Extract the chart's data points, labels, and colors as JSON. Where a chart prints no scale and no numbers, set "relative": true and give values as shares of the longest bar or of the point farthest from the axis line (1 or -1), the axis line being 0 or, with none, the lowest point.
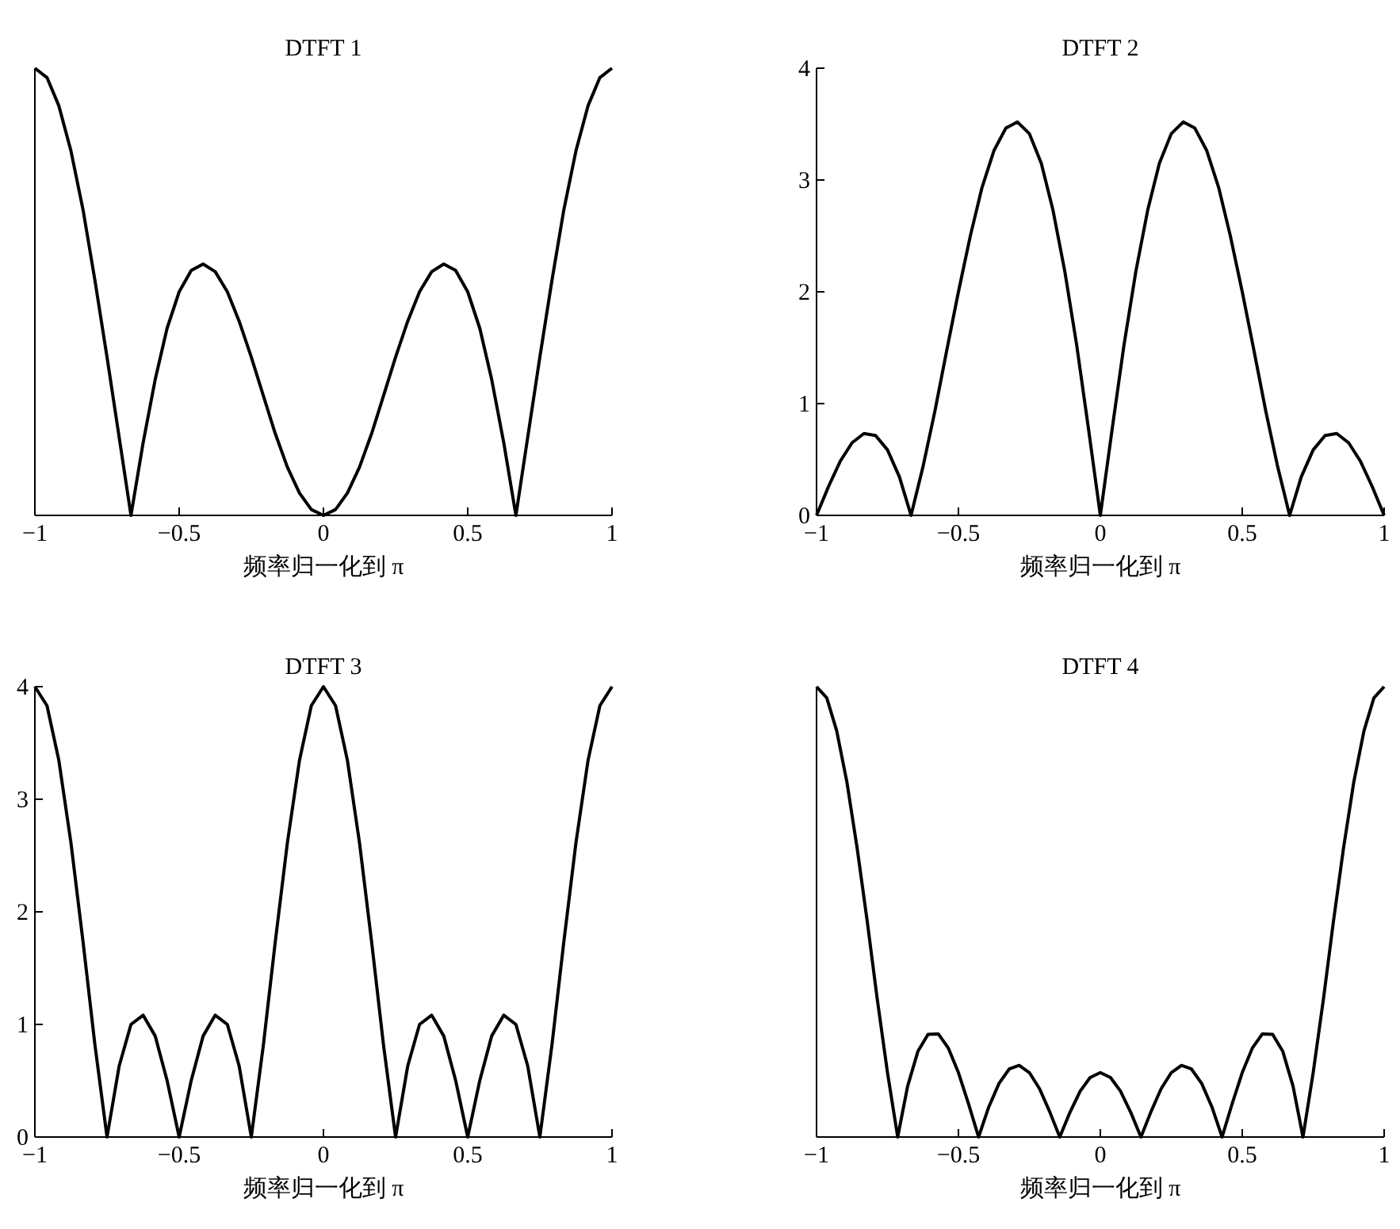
{
  "chart_data": [
    {
      "type": "line",
      "title": "DTFT 1",
      "xlabel": "频率归一化到 π",
      "relative": true,
      "tick_labels": "x",
      "xlim": [
        -1,
        1
      ],
      "xticks": [
        -1,
        -0.5,
        0,
        0.5,
        1
      ],
      "color": "#000000",
      "x": [
        -1,
        -0.958,
        -0.917,
        -0.875,
        -0.833,
        -0.792,
        -0.75,
        -0.708,
        -0.667,
        -0.625,
        -0.583,
        -0.542,
        -0.5,
        -0.458,
        -0.417,
        -0.375,
        -0.333,
        -0.292,
        -0.25,
        -0.208,
        -0.167,
        -0.125,
        -0.083,
        -0.042,
        0,
        0.042,
        0.083,
        0.125,
        0.167,
        0.208,
        0.25,
        0.292,
        0.333,
        0.375,
        0.417,
        0.458,
        0.5,
        0.542,
        0.583,
        0.625,
        0.667,
        0.708,
        0.75,
        0.792,
        0.833,
        0.875,
        0.917,
        0.958,
        1
      ],
      "values": [
        1,
        0.979,
        0.916,
        0.815,
        0.683,
        0.526,
        0.354,
        0.175,
        0,
        0.162,
        0.304,
        0.418,
        0.5,
        0.548,
        0.562,
        0.545,
        0.5,
        0.434,
        0.354,
        0.267,
        0.183,
        0.108,
        0.05,
        0.013,
        0,
        0.013,
        0.05,
        0.108,
        0.183,
        0.267,
        0.354,
        0.434,
        0.5,
        0.545,
        0.562,
        0.548,
        0.5,
        0.418,
        0.304,
        0.162,
        0,
        0.175,
        0.354,
        0.526,
        0.683,
        0.815,
        0.916,
        0.979,
        1
      ]
    },
    {
      "type": "line",
      "title": "DTFT 2",
      "xlabel": "频率归一化到 π",
      "xlim": [
        -1,
        1
      ],
      "xticks": [
        -1,
        -0.5,
        0,
        0.5,
        1
      ],
      "ylim": [
        0,
        4
      ],
      "yticks": [
        0,
        1,
        2,
        3,
        4
      ],
      "color": "#000000",
      "x": [
        -1,
        -0.958,
        -0.917,
        -0.875,
        -0.833,
        -0.792,
        -0.75,
        -0.708,
        -0.667,
        -0.625,
        -0.583,
        -0.542,
        -0.5,
        -0.458,
        -0.417,
        -0.375,
        -0.333,
        -0.292,
        -0.25,
        -0.208,
        -0.167,
        -0.125,
        -0.083,
        -0.042,
        0,
        0.042,
        0.083,
        0.125,
        0.167,
        0.208,
        0.25,
        0.292,
        0.333,
        0.375,
        0.417,
        0.458,
        0.5,
        0.542,
        0.583,
        0.625,
        0.667,
        0.708,
        0.75,
        0.792,
        0.833,
        0.875,
        0.917,
        0.958,
        1
      ],
      "values": [
        0,
        0.257,
        0.482,
        0.649,
        0.732,
        0.714,
        0.586,
        0.345,
        0,
        0.434,
        0.932,
        1.465,
        2,
        2.501,
        2.932,
        3.262,
        3.464,
        3.519,
        3.414,
        3.149,
        2.732,
        2.18,
        1.518,
        0.779,
        0,
        0.779,
        1.518,
        2.18,
        2.732,
        3.149,
        3.414,
        3.519,
        3.464,
        3.262,
        2.932,
        2.501,
        2,
        1.465,
        0.932,
        0.434,
        0,
        0.345,
        0.586,
        0.714,
        0.732,
        0.649,
        0.482,
        0.257,
        0
      ]
    },
    {
      "type": "line",
      "title": "DTFT 3",
      "xlabel": "频率归一化到 π",
      "xlim": [
        -1,
        1
      ],
      "xticks": [
        -1,
        -0.5,
        0,
        0.5,
        1
      ],
      "ylim": [
        0,
        4
      ],
      "yticks": [
        0,
        1,
        2,
        3,
        4
      ],
      "color": "#000000",
      "x": [
        -1,
        -0.958,
        -0.917,
        -0.875,
        -0.833,
        -0.792,
        -0.75,
        -0.708,
        -0.667,
        -0.625,
        -0.583,
        -0.542,
        -0.5,
        -0.458,
        -0.417,
        -0.375,
        -0.333,
        -0.292,
        -0.25,
        -0.208,
        -0.167,
        -0.125,
        -0.083,
        -0.042,
        0,
        0.042,
        0.083,
        0.125,
        0.167,
        0.208,
        0.25,
        0.292,
        0.333,
        0.375,
        0.417,
        0.458,
        0.5,
        0.542,
        0.583,
        0.625,
        0.667,
        0.708,
        0.75,
        0.792,
        0.833,
        0.875,
        0.917,
        0.958,
        1
      ],
      "values": [
        4,
        3.831,
        3.346,
        2.613,
        1.732,
        0.821,
        0,
        0.63,
        1,
        1.082,
        0.897,
        0.504,
        0,
        0.504,
        0.897,
        1.082,
        1,
        0.63,
        0,
        0.821,
        1.732,
        2.613,
        3.346,
        3.831,
        4,
        3.831,
        3.346,
        2.613,
        1.732,
        0.821,
        0,
        0.63,
        1,
        1.082,
        0.897,
        0.504,
        0,
        0.504,
        0.897,
        1.082,
        1,
        0.63,
        0,
        0.821,
        1.732,
        2.613,
        3.346,
        3.831,
        4
      ]
    },
    {
      "type": "line",
      "title": "DTFT 4",
      "xlabel": "频率归一化到 π",
      "relative": true,
      "tick_labels": "x",
      "xlim": [
        -1,
        1
      ],
      "xticks": [
        -1,
        -0.5,
        0,
        0.5,
        1
      ],
      "color": "#000000",
      "x": [
        -1,
        -0.964,
        -0.929,
        -0.893,
        -0.857,
        -0.821,
        -0.786,
        -0.75,
        -0.714,
        -0.679,
        -0.643,
        -0.607,
        -0.571,
        -0.536,
        -0.5,
        -0.464,
        -0.429,
        -0.393,
        -0.357,
        -0.321,
        -0.286,
        -0.25,
        -0.214,
        -0.179,
        -0.143,
        -0.107,
        -0.071,
        -0.036,
        0,
        0.036,
        0.071,
        0.107,
        0.143,
        0.179,
        0.214,
        0.25,
        0.286,
        0.321,
        0.357,
        0.393,
        0.429,
        0.464,
        0.5,
        0.536,
        0.571,
        0.607,
        0.643,
        0.679,
        0.714,
        0.75,
        0.786,
        0.821,
        0.857,
        0.893,
        0.929,
        0.964,
        1
      ],
      "values": [
        1,
        0.975,
        0.902,
        0.788,
        0.642,
        0.477,
        0.306,
        0.143,
        0,
        0.113,
        0.19,
        0.228,
        0.229,
        0.198,
        0.143,
        0.073,
        0,
        0.067,
        0.119,
        0.151,
        0.159,
        0.143,
        0.107,
        0.057,
        0,
        0.055,
        0.102,
        0.132,
        0.143,
        0.132,
        0.102,
        0.055,
        0,
        0.057,
        0.107,
        0.143,
        0.159,
        0.151,
        0.119,
        0.067,
        0,
        0.073,
        0.143,
        0.198,
        0.229,
        0.228,
        0.19,
        0.113,
        0,
        0.143,
        0.306,
        0.477,
        0.642,
        0.788,
        0.902,
        0.975,
        1
      ]
    }
  ]
}
